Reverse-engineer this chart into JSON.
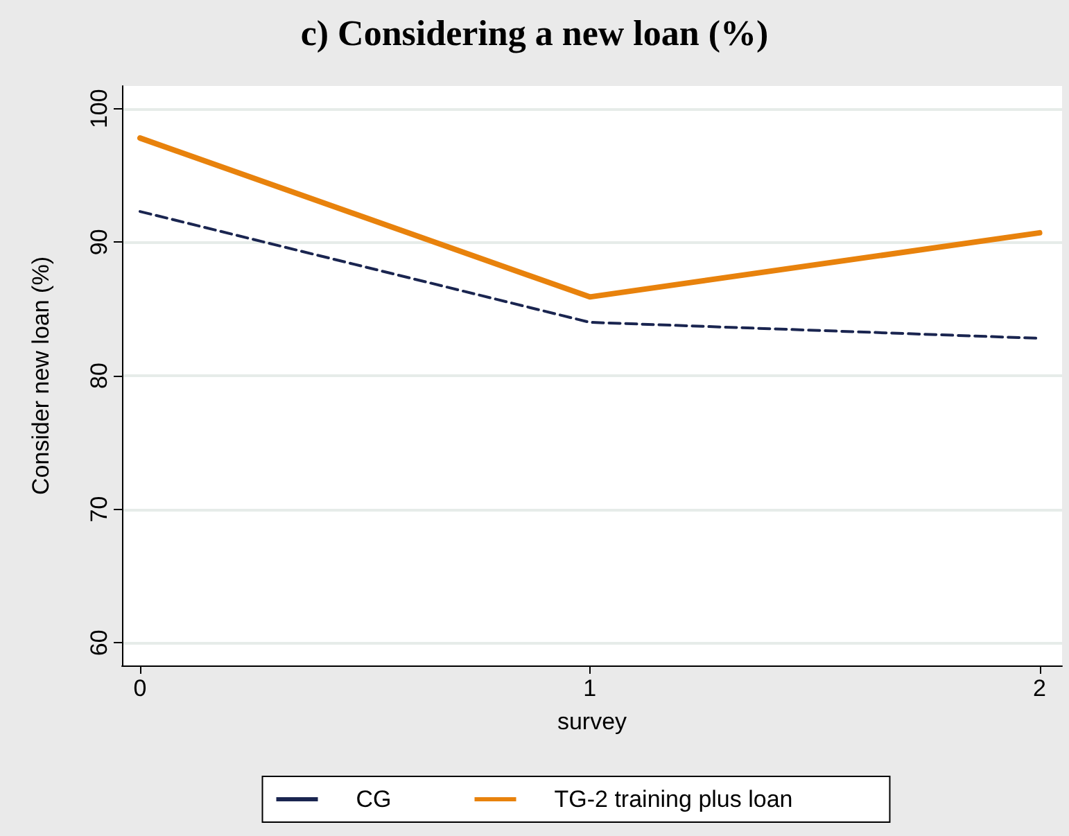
{
  "chart_data": {
    "type": "line",
    "title": "c) Considering a new loan (%)",
    "xlabel": "survey",
    "ylabel": "Consider new loan (%)",
    "x": [
      0,
      1,
      2
    ],
    "series": [
      {
        "name": "CG",
        "color": "#1a2550",
        "values": [
          92.3,
          84.0,
          82.8
        ],
        "line_style": "dashed"
      },
      {
        "name": "TG-2 training plus loan",
        "color": "#e8820c",
        "values": [
          97.8,
          85.9,
          90.7
        ],
        "line_style": "solid"
      }
    ],
    "xlim": [
      -0.04,
      2.05
    ],
    "xticks": [
      0,
      1,
      2
    ],
    "ylim": [
      58.3,
      101.7
    ],
    "yticks": [
      60,
      70,
      80,
      90,
      100
    ],
    "grid": "y",
    "legend": "bottom",
    "marker": "none"
  }
}
